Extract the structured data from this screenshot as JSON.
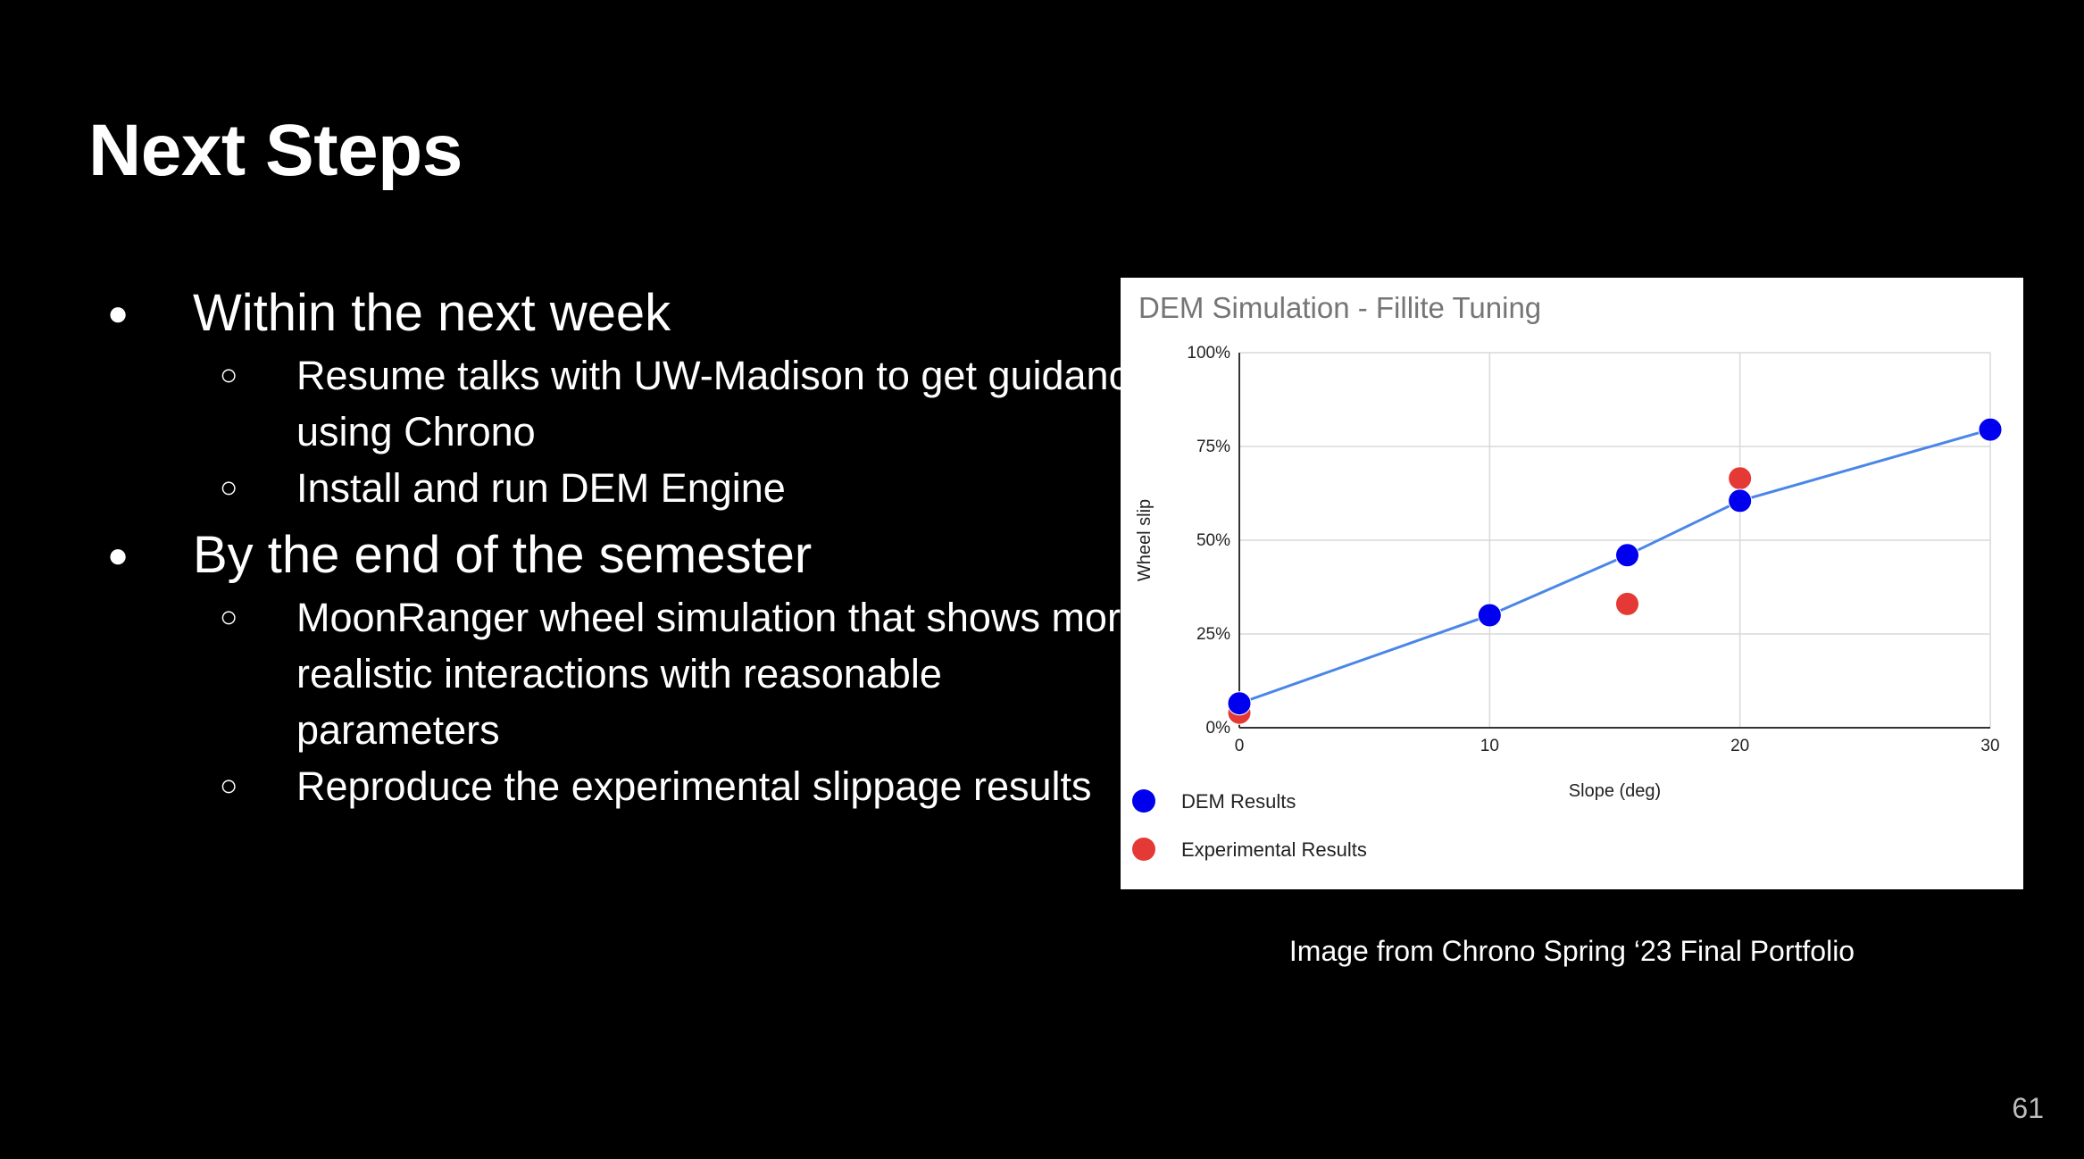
{
  "slide": {
    "title": "Next Steps",
    "page_number": "61",
    "caption": "Image from Chrono Spring ‘23 Final Portfolio",
    "bullets": [
      {
        "text": "Within the next week",
        "sub": [
          "Resume talks with UW-Madison to get guidance using Chrono",
          "Install and run DEM Engine"
        ]
      },
      {
        "text": "By the end of the semester",
        "sub": [
          "MoonRanger wheel simulation that shows more realistic interactions with reasonable parameters",
          "Reproduce the experimental slippage results"
        ]
      }
    ]
  },
  "chart_data": {
    "type": "scatter",
    "title": "DEM Simulation - Fillite Tuning",
    "xlabel": "Slope (deg)",
    "ylabel": "Wheel slip",
    "xlim": [
      0,
      30
    ],
    "ylim": [
      0,
      1
    ],
    "x_ticks": [
      0,
      10,
      20,
      30
    ],
    "x_tick_labels": [
      "0",
      "10",
      "20",
      "30"
    ],
    "y_ticks": [
      0,
      0.25,
      0.5,
      0.75,
      1.0
    ],
    "y_tick_labels": [
      "0%",
      "25%",
      "50%",
      "75%",
      "100%"
    ],
    "grid": true,
    "legend_position": "bottom-left",
    "series": [
      {
        "name": "DEM Results",
        "color": "#0000ee",
        "line_color": "#4a86e8",
        "trendline": true,
        "x": [
          0,
          10,
          15.5,
          20,
          30
        ],
        "y": [
          0.065,
          0.3,
          0.46,
          0.605,
          0.795
        ]
      },
      {
        "name": "Experimental Results",
        "color": "#e53935",
        "trendline": false,
        "x": [
          0,
          15.5,
          20
        ],
        "y": [
          0.04,
          0.33,
          0.665
        ]
      }
    ]
  }
}
